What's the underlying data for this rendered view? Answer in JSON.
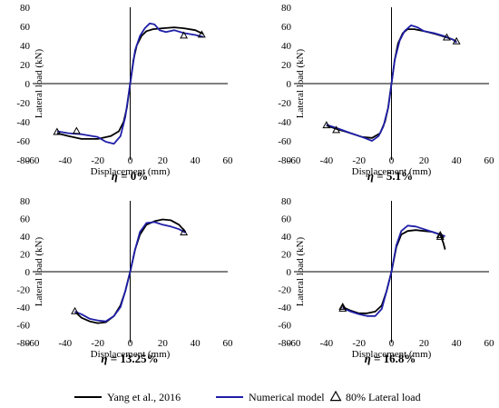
{
  "legend": {
    "entries": [
      {
        "label": "Yang et al., 2016",
        "color": "#000000",
        "kind": "line"
      },
      {
        "label": "Numerical model",
        "color": "#1f1fa8",
        "kind": "line"
      },
      {
        "label": "80% Lateral load",
        "color": "#000000",
        "kind": "triangle"
      }
    ]
  },
  "chart_data": [
    {
      "type": "line",
      "caption": "η = 0%",
      "eta_value": "0%",
      "xlabel": "Displacement (mm)",
      "ylabel": "Lateral load (kN)",
      "xlim": [
        -60,
        60
      ],
      "ylim": [
        -80,
        80
      ],
      "xticks": [
        -60,
        -40,
        -20,
        0,
        20,
        40,
        60
      ],
      "yticks": [
        -80,
        -60,
        -40,
        -20,
        0,
        20,
        40,
        60,
        80
      ],
      "series": [
        {
          "name": "Yang et al., 2016",
          "color": "#000000",
          "x": [
            -45,
            -38,
            -30,
            -20,
            -12,
            -7,
            -4,
            -2,
            0,
            2,
            4,
            7,
            10,
            14,
            20,
            27,
            33,
            40,
            45
          ],
          "y": [
            -52,
            -55,
            -58,
            -58,
            -55,
            -50,
            -40,
            -25,
            0,
            25,
            40,
            50,
            55,
            57,
            58,
            59,
            58,
            56,
            52
          ]
        },
        {
          "name": "Numerical model",
          "color": "#1f1fa8",
          "x": [
            -45,
            -38,
            -30,
            -20,
            -15,
            -10,
            -6,
            -3,
            0,
            3,
            6,
            9,
            12,
            15,
            18,
            22,
            27,
            33,
            40,
            45
          ],
          "y": [
            -50,
            -52,
            -53,
            -56,
            -61,
            -63,
            -55,
            -35,
            0,
            35,
            50,
            58,
            63,
            62,
            56,
            54,
            56,
            53,
            51,
            49
          ]
        }
      ],
      "markers": [
        {
          "x": -45,
          "y": -51
        },
        {
          "x": -33,
          "y": -50
        },
        {
          "x": 33,
          "y": 50
        },
        {
          "x": 44,
          "y": 51
        }
      ]
    },
    {
      "type": "line",
      "caption": "η = 5.1%",
      "eta_value": "5.1%",
      "xlabel": "Displacement (mm)",
      "ylabel": "Lateral load (kN)",
      "xlim": [
        -60,
        60
      ],
      "ylim": [
        -80,
        80
      ],
      "xticks": [
        -60,
        -40,
        -20,
        0,
        20,
        40,
        60
      ],
      "yticks": [
        -80,
        -60,
        -40,
        -20,
        0,
        20,
        40,
        60,
        80
      ],
      "series": [
        {
          "name": "Yang et al., 2016",
          "color": "#000000",
          "x": [
            -40,
            -33,
            -25,
            -18,
            -12,
            -7,
            -4,
            -2,
            0,
            2,
            4,
            7,
            10,
            14,
            20,
            27,
            33,
            38,
            40
          ],
          "y": [
            -44,
            -48,
            -52,
            -56,
            -57,
            -52,
            -40,
            -25,
            0,
            25,
            42,
            53,
            57,
            57,
            55,
            52,
            49,
            46,
            44
          ]
        },
        {
          "name": "Numerical model",
          "color": "#1f1fa8",
          "x": [
            -40,
            -33,
            -25,
            -18,
            -12,
            -8,
            -5,
            -2,
            0,
            2,
            5,
            8,
            12,
            16,
            20,
            26,
            32,
            38,
            40
          ],
          "y": [
            -43,
            -47,
            -52,
            -56,
            -60,
            -55,
            -45,
            -25,
            0,
            25,
            45,
            55,
            61,
            59,
            55,
            53,
            50,
            46,
            43
          ]
        }
      ],
      "markers": [
        {
          "x": -40,
          "y": -44
        },
        {
          "x": -34,
          "y": -49
        },
        {
          "x": 34,
          "y": 48
        },
        {
          "x": 40,
          "y": 44
        }
      ]
    },
    {
      "type": "line",
      "caption": "η = 13.25%",
      "eta_value": "13.25%",
      "xlabel": "Displacement (mm)",
      "ylabel": "Lateral load (kN)",
      "xlim": [
        -60,
        60
      ],
      "ylim": [
        -80,
        80
      ],
      "xticks": [
        -60,
        -40,
        -20,
        0,
        20,
        40,
        60
      ],
      "yticks": [
        -80,
        -60,
        -40,
        -20,
        0,
        20,
        40,
        60,
        80
      ],
      "series": [
        {
          "name": "Yang et al., 2016",
          "color": "#000000",
          "x": [
            -34,
            -30,
            -25,
            -20,
            -15,
            -10,
            -6,
            -3,
            0,
            3,
            6,
            10,
            15,
            20,
            25,
            30,
            34
          ],
          "y": [
            -45,
            -52,
            -56,
            -58,
            -57,
            -50,
            -38,
            -22,
            0,
            25,
            42,
            53,
            57,
            59,
            58,
            53,
            45
          ]
        },
        {
          "name": "Numerical model",
          "color": "#1f1fa8",
          "x": [
            -34,
            -30,
            -25,
            -20,
            -15,
            -10,
            -6,
            -3,
            0,
            3,
            6,
            10,
            15,
            20,
            25,
            30,
            34
          ],
          "y": [
            -45,
            -48,
            -53,
            -55,
            -56,
            -50,
            -40,
            -22,
            0,
            25,
            45,
            55,
            56,
            53,
            51,
            48,
            44
          ]
        }
      ],
      "markers": [
        {
          "x": -34,
          "y": -45
        },
        {
          "x": 33,
          "y": 44
        }
      ]
    },
    {
      "type": "line",
      "caption": "η = 16.8%",
      "eta_value": "16.8%",
      "xlabel": "Displacement (mm)",
      "ylabel": "Lateral load (kN)",
      "xlim": [
        -60,
        60
      ],
      "ylim": [
        -80,
        80
      ],
      "xticks": [
        -60,
        -40,
        -20,
        0,
        20,
        40,
        60
      ],
      "yticks": [
        -80,
        -60,
        -40,
        -20,
        0,
        20,
        40,
        60,
        80
      ],
      "series": [
        {
          "name": "Yang et al., 2016",
          "color": "#000000",
          "x": [
            -30,
            -25,
            -20,
            -15,
            -10,
            -6,
            -3,
            0,
            3,
            6,
            10,
            15,
            20,
            25,
            30,
            32,
            33
          ],
          "y": [
            -40,
            -44,
            -47,
            -47,
            -45,
            -38,
            -22,
            0,
            28,
            42,
            46,
            47,
            46,
            45,
            42,
            32,
            25
          ]
        },
        {
          "name": "Numerical model",
          "color": "#1f1fa8",
          "x": [
            -30,
            -25,
            -20,
            -15,
            -10,
            -6,
            -3,
            0,
            3,
            6,
            10,
            15,
            20,
            25,
            30,
            33
          ],
          "y": [
            -41,
            -45,
            -48,
            -50,
            -50,
            -42,
            -22,
            0,
            30,
            46,
            52,
            51,
            48,
            45,
            42,
            40
          ]
        }
      ],
      "markers": [
        {
          "x": -30,
          "y": -40
        },
        {
          "x": -30,
          "y": -42
        },
        {
          "x": 30,
          "y": 41
        },
        {
          "x": 30,
          "y": 39
        }
      ]
    }
  ]
}
